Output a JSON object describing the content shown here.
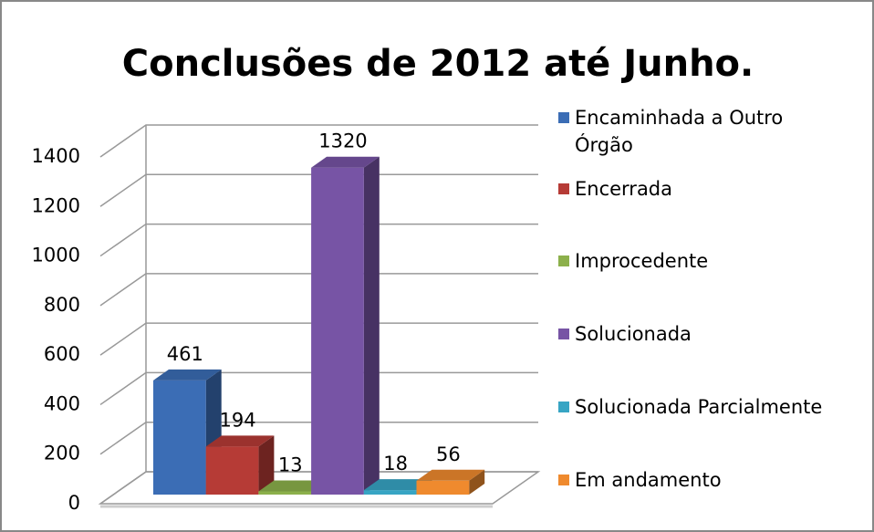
{
  "chart_data": {
    "type": "bar3d",
    "title": "Conclusões de 2012 até Junho.",
    "series": [
      {
        "name": "Encaminhada a Outro Órgão",
        "color": "#3b6db5",
        "values": [
          461
        ]
      },
      {
        "name": "Encerrada",
        "color": "#b63b36",
        "values": [
          194
        ]
      },
      {
        "name": "Improcedente",
        "color": "#8cb04b",
        "values": [
          13
        ]
      },
      {
        "name": "Solucionada",
        "color": "#7754a5",
        "values": [
          1320
        ]
      },
      {
        "name": "Solucionada Parcialmente",
        "color": "#37a5c4",
        "values": [
          18
        ]
      },
      {
        "name": "Em andamento",
        "color": "#ef8a2e",
        "values": [
          56
        ]
      }
    ],
    "ylim": [
      0,
      1400
    ],
    "yticks": [
      0,
      200,
      400,
      600,
      800,
      1000,
      1200,
      1400
    ],
    "grid": true,
    "legend": "right"
  }
}
